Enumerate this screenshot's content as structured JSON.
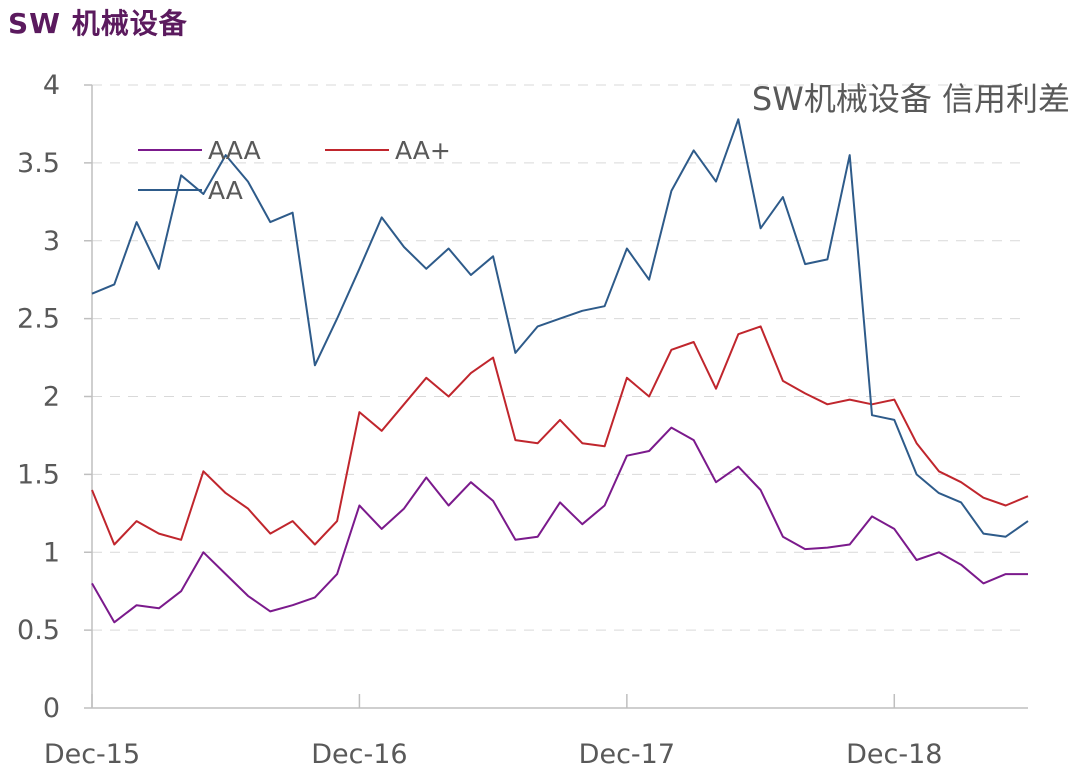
{
  "page_title": "SW 机械设备",
  "chart_data": {
    "type": "line",
    "title": "SW机械设备 信用利差",
    "xlabel": "",
    "ylabel": "",
    "ylim": [
      0,
      4
    ],
    "yticks": [
      "0",
      "0.5",
      "1",
      "1.5",
      "2",
      "2.5",
      "3",
      "3.5",
      "4"
    ],
    "x_range": [
      "2015-12",
      "2019-06"
    ],
    "xticks": [
      {
        "label": "Dec-15",
        "date": "2015-12"
      },
      {
        "label": "Dec-16",
        "date": "2016-12"
      },
      {
        "label": "Dec-17",
        "date": "2017-12"
      },
      {
        "label": "Dec-18",
        "date": "2018-12"
      }
    ],
    "grid": "horizontal dashed",
    "legend_position": "top-left",
    "series": [
      {
        "name": "AAA",
        "color": "#7b1a8c",
        "points": [
          [
            "2015-12",
            0.8
          ],
          [
            "2016-01",
            0.55
          ],
          [
            "2016-02",
            0.66
          ],
          [
            "2016-03",
            0.64
          ],
          [
            "2016-04",
            0.75
          ],
          [
            "2016-05",
            1.0
          ],
          [
            "2016-06",
            0.86
          ],
          [
            "2016-07",
            0.72
          ],
          [
            "2016-08",
            0.62
          ],
          [
            "2016-09",
            0.66
          ],
          [
            "2016-10",
            0.71
          ],
          [
            "2016-11",
            0.86
          ],
          [
            "2016-12",
            1.3
          ],
          [
            "2017-01",
            1.15
          ],
          [
            "2017-02",
            1.28
          ],
          [
            "2017-03",
            1.48
          ],
          [
            "2017-04",
            1.3
          ],
          [
            "2017-05",
            1.45
          ],
          [
            "2017-06",
            1.33
          ],
          [
            "2017-07",
            1.08
          ],
          [
            "2017-08",
            1.1
          ],
          [
            "2017-09",
            1.32
          ],
          [
            "2017-10",
            1.18
          ],
          [
            "2017-11",
            1.3
          ],
          [
            "2017-12",
            1.62
          ],
          [
            "2018-01",
            1.65
          ],
          [
            "2018-02",
            1.8
          ],
          [
            "2018-03",
            1.72
          ],
          [
            "2018-04",
            1.45
          ],
          [
            "2018-05",
            1.55
          ],
          [
            "2018-06",
            1.4
          ],
          [
            "2018-07",
            1.1
          ],
          [
            "2018-08",
            1.02
          ],
          [
            "2018-09",
            1.03
          ],
          [
            "2018-10",
            1.05
          ],
          [
            "2018-11",
            1.23
          ],
          [
            "2018-12",
            1.15
          ],
          [
            "2019-01",
            0.95
          ],
          [
            "2019-02",
            1.0
          ],
          [
            "2019-03",
            0.92
          ],
          [
            "2019-04",
            0.8
          ],
          [
            "2019-05",
            0.86
          ],
          [
            "2019-06",
            0.86
          ]
        ]
      },
      {
        "name": "AA+",
        "color": "#c0262d",
        "points": [
          [
            "2015-12",
            1.4
          ],
          [
            "2016-01",
            1.05
          ],
          [
            "2016-02",
            1.2
          ],
          [
            "2016-03",
            1.12
          ],
          [
            "2016-04",
            1.08
          ],
          [
            "2016-05",
            1.52
          ],
          [
            "2016-06",
            1.38
          ],
          [
            "2016-07",
            1.28
          ],
          [
            "2016-08",
            1.12
          ],
          [
            "2016-09",
            1.2
          ],
          [
            "2016-10",
            1.05
          ],
          [
            "2016-11",
            1.2
          ],
          [
            "2016-12",
            1.9
          ],
          [
            "2017-01",
            1.78
          ],
          [
            "2017-02",
            1.95
          ],
          [
            "2017-03",
            2.12
          ],
          [
            "2017-04",
            2.0
          ],
          [
            "2017-05",
            2.15
          ],
          [
            "2017-06",
            2.25
          ],
          [
            "2017-07",
            1.72
          ],
          [
            "2017-08",
            1.7
          ],
          [
            "2017-09",
            1.85
          ],
          [
            "2017-10",
            1.7
          ],
          [
            "2017-11",
            1.68
          ],
          [
            "2017-12",
            2.12
          ],
          [
            "2018-01",
            2.0
          ],
          [
            "2018-02",
            2.3
          ],
          [
            "2018-03",
            2.35
          ],
          [
            "2018-04",
            2.05
          ],
          [
            "2018-05",
            2.4
          ],
          [
            "2018-06",
            2.45
          ],
          [
            "2018-07",
            2.1
          ],
          [
            "2018-08",
            2.02
          ],
          [
            "2018-09",
            1.95
          ],
          [
            "2018-10",
            1.98
          ],
          [
            "2018-11",
            1.95
          ],
          [
            "2018-12",
            1.98
          ],
          [
            "2019-01",
            1.7
          ],
          [
            "2019-02",
            1.52
          ],
          [
            "2019-03",
            1.45
          ],
          [
            "2019-04",
            1.35
          ],
          [
            "2019-05",
            1.3
          ],
          [
            "2019-06",
            1.36
          ]
        ]
      },
      {
        "name": "AA",
        "color": "#2e5b8a",
        "points": [
          [
            "2015-12",
            2.66
          ],
          [
            "2016-01",
            2.72
          ],
          [
            "2016-02",
            3.12
          ],
          [
            "2016-03",
            2.82
          ],
          [
            "2016-04",
            3.42
          ],
          [
            "2016-05",
            3.3
          ],
          [
            "2016-06",
            3.55
          ],
          [
            "2016-07",
            3.38
          ],
          [
            "2016-08",
            3.12
          ],
          [
            "2016-09",
            3.18
          ],
          [
            "2016-10",
            2.2
          ],
          [
            "2016-11",
            2.5
          ],
          [
            "2016-12",
            2.82
          ],
          [
            "2017-01",
            3.15
          ],
          [
            "2017-02",
            2.96
          ],
          [
            "2017-03",
            2.82
          ],
          [
            "2017-04",
            2.95
          ],
          [
            "2017-05",
            2.78
          ],
          [
            "2017-06",
            2.9
          ],
          [
            "2017-07",
            2.28
          ],
          [
            "2017-08",
            2.45
          ],
          [
            "2017-09",
            2.5
          ],
          [
            "2017-10",
            2.55
          ],
          [
            "2017-11",
            2.58
          ],
          [
            "2017-12",
            2.95
          ],
          [
            "2018-01",
            2.75
          ],
          [
            "2018-02",
            3.32
          ],
          [
            "2018-03",
            3.58
          ],
          [
            "2018-04",
            3.38
          ],
          [
            "2018-05",
            3.78
          ],
          [
            "2018-06",
            3.08
          ],
          [
            "2018-07",
            3.28
          ],
          [
            "2018-08",
            2.85
          ],
          [
            "2018-09",
            2.88
          ],
          [
            "2018-10",
            3.55
          ],
          [
            "2018-11",
            1.88
          ],
          [
            "2018-12",
            1.85
          ],
          [
            "2019-01",
            1.5
          ],
          [
            "2019-02",
            1.38
          ],
          [
            "2019-03",
            1.32
          ],
          [
            "2019-04",
            1.12
          ],
          [
            "2019-05",
            1.1
          ],
          [
            "2019-06",
            1.2
          ]
        ]
      }
    ]
  }
}
